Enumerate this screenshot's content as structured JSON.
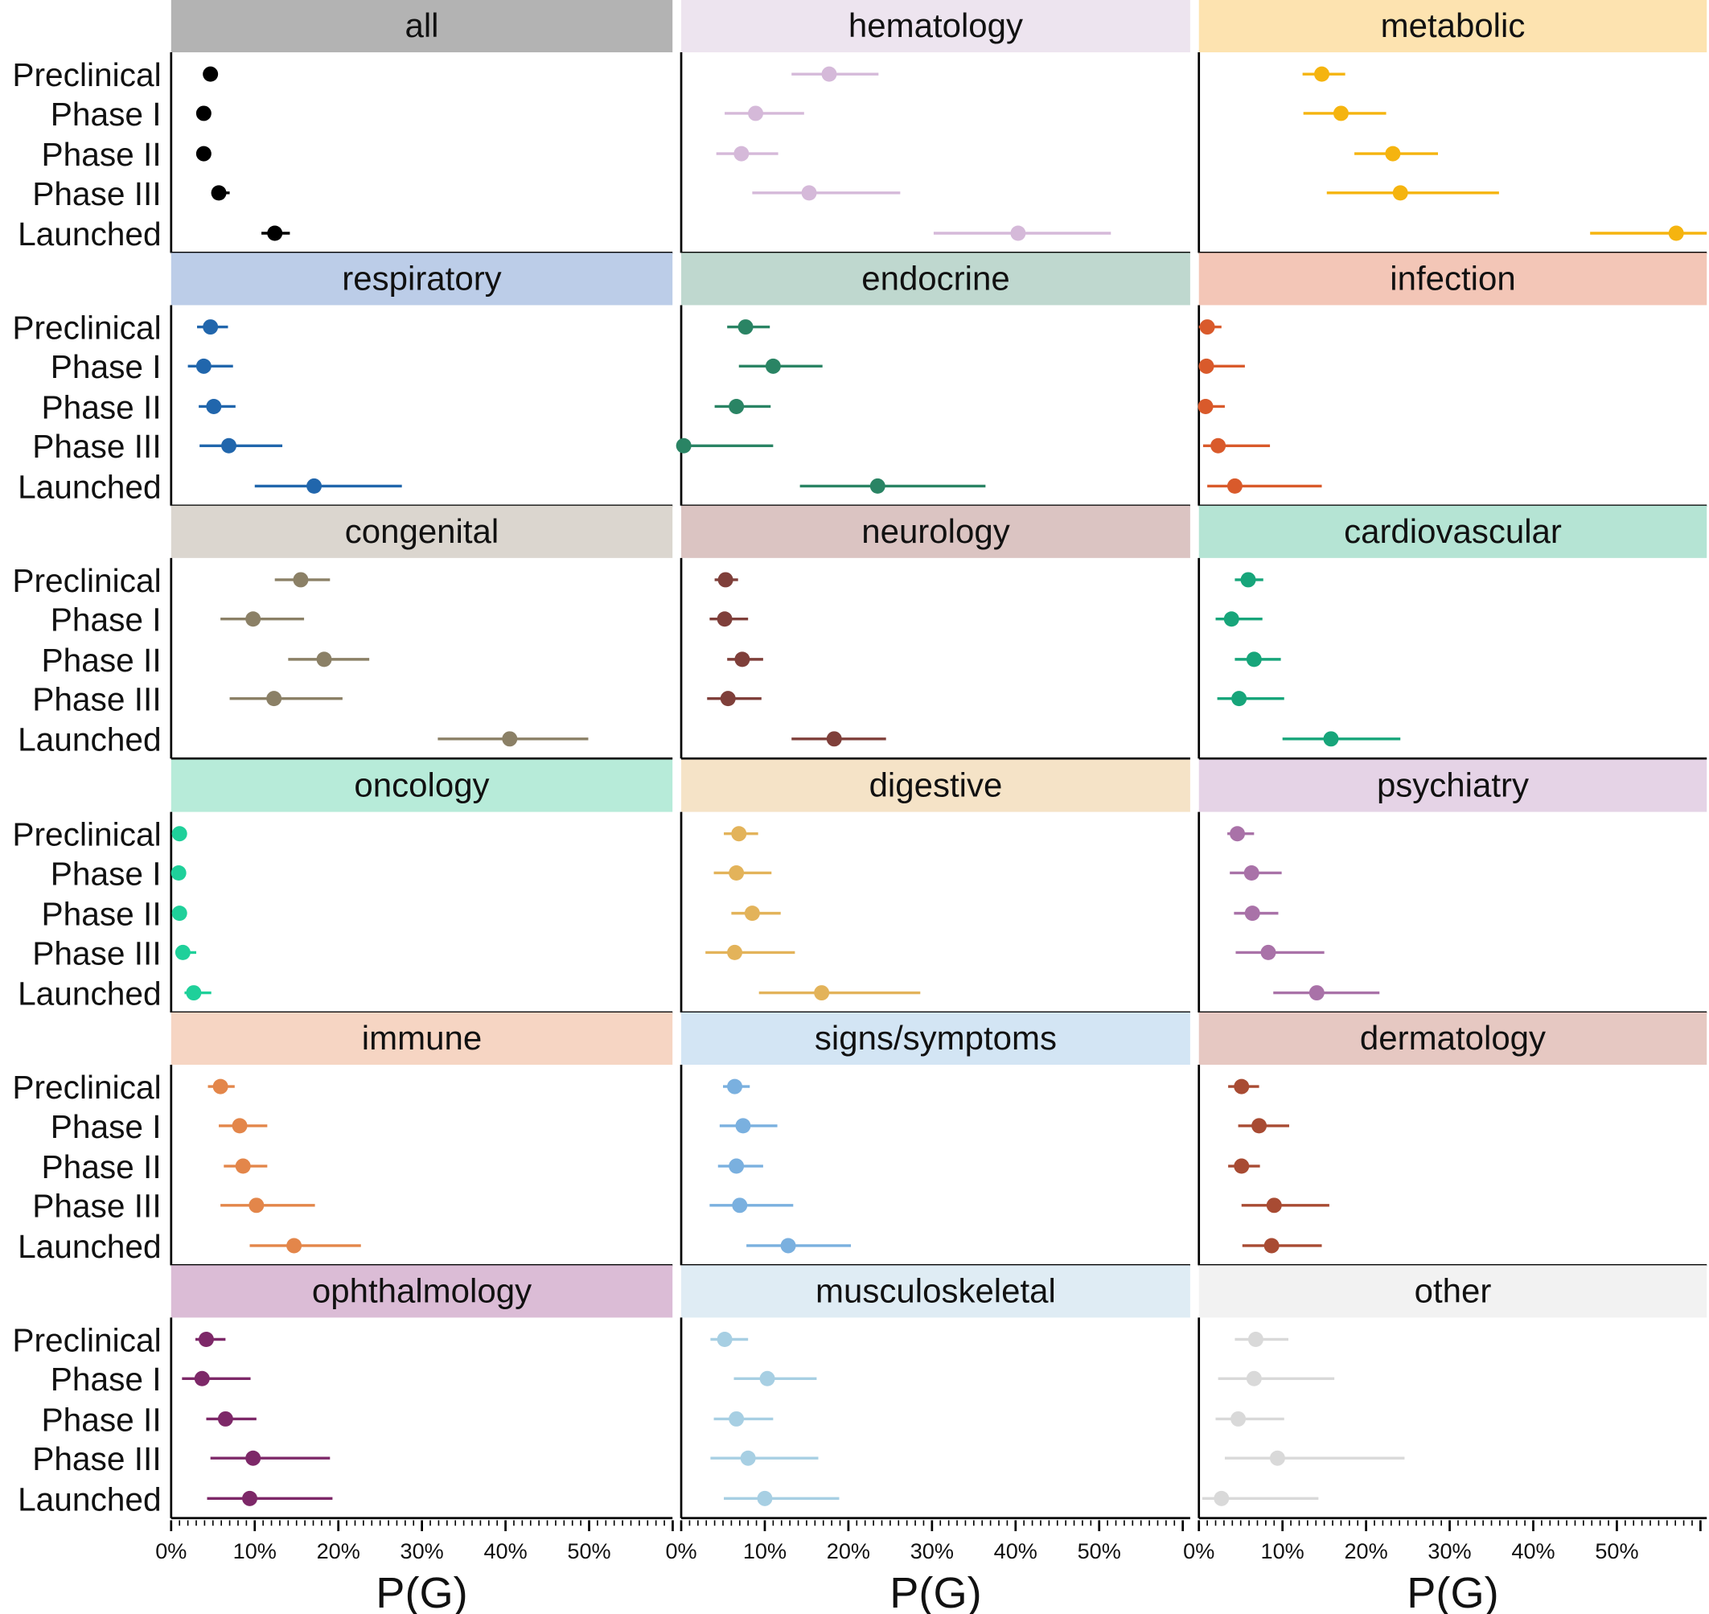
{
  "chart_data": {
    "type": "scatter",
    "subtype": "point-range faceted",
    "xlabel": "P(G)",
    "ylabel": "",
    "xlim": [
      0,
      60
    ],
    "x_ticks": [
      0,
      10,
      20,
      30,
      40,
      50
    ],
    "x_tick_labels": [
      "0%",
      "10%",
      "20%",
      "30%",
      "40%",
      "50%"
    ],
    "categories": [
      "Preclinical",
      "Phase I",
      "Phase II",
      "Phase III",
      "Launched"
    ],
    "grid": false,
    "legend": "none",
    "panels": [
      {
        "title": "all",
        "header_color": "#b3b3b3",
        "color": "#000000",
        "values": [
          4.7,
          3.9,
          3.9,
          5.7,
          12.4
        ],
        "lo": [
          4.7,
          3.9,
          3.9,
          4.9,
          10.8
        ],
        "hi": [
          4.7,
          3.9,
          3.9,
          7.0,
          14.2
        ]
      },
      {
        "title": "hematology",
        "header_color": "#ede4ef",
        "color": "#d5b9d9",
        "values": [
          17.7,
          8.9,
          7.2,
          15.3,
          40.3
        ],
        "lo": [
          13.2,
          5.2,
          4.2,
          8.5,
          30.2
        ],
        "hi": [
          23.6,
          14.7,
          11.6,
          26.2,
          51.4
        ]
      },
      {
        "title": "metabolic",
        "header_color": "#fde3b0",
        "color": "#f5b40f",
        "values": [
          14.7,
          17.0,
          23.2,
          24.1,
          57.1
        ],
        "lo": [
          12.4,
          12.5,
          18.6,
          15.3,
          46.8
        ],
        "hi": [
          17.5,
          22.4,
          28.6,
          35.9,
          60.8
        ]
      },
      {
        "title": "respiratory",
        "header_color": "#bccde8",
        "color": "#2166ac",
        "values": [
          4.7,
          3.9,
          5.1,
          6.9,
          17.1
        ],
        "lo": [
          3.1,
          2.0,
          3.3,
          3.4,
          10.0
        ],
        "hi": [
          6.8,
          7.4,
          7.7,
          13.3,
          27.6
        ]
      },
      {
        "title": "endocrine",
        "header_color": "#bfd8cf",
        "color": "#2a8464",
        "values": [
          7.7,
          11.0,
          6.6,
          0.3,
          23.5
        ],
        "lo": [
          5.5,
          6.9,
          4.0,
          0.0,
          14.2
        ],
        "hi": [
          10.6,
          16.9,
          10.7,
          11.0,
          36.4
        ]
      },
      {
        "title": "infection",
        "header_color": "#f3c6b7",
        "color": "#d95a2b",
        "values": [
          1.0,
          0.9,
          0.8,
          2.3,
          4.3
        ],
        "lo": [
          0.0,
          0.0,
          0.0,
          0.5,
          1.0
        ],
        "hi": [
          2.7,
          5.5,
          3.1,
          8.5,
          14.7
        ]
      },
      {
        "title": "congenital",
        "header_color": "#dbd6cf",
        "color": "#8b8066",
        "values": [
          15.5,
          9.8,
          18.3,
          12.3,
          40.5
        ],
        "lo": [
          12.4,
          5.9,
          14.0,
          7.0,
          31.9
        ],
        "hi": [
          19.0,
          15.9,
          23.7,
          20.5,
          49.9
        ]
      },
      {
        "title": "neurology",
        "header_color": "#dbc4c2",
        "color": "#7f3f3a",
        "values": [
          5.3,
          5.2,
          7.3,
          5.6,
          18.3
        ],
        "lo": [
          4.0,
          3.4,
          5.5,
          3.1,
          13.2
        ],
        "hi": [
          6.8,
          8.0,
          9.8,
          9.6,
          24.5
        ]
      },
      {
        "title": "cardiovascular",
        "header_color": "#b5e4d4",
        "color": "#17a57a",
        "values": [
          5.9,
          3.9,
          6.6,
          4.8,
          15.8
        ],
        "lo": [
          4.3,
          2.0,
          4.3,
          2.2,
          10.0
        ],
        "hi": [
          7.7,
          7.6,
          9.8,
          10.2,
          24.1
        ]
      },
      {
        "title": "oncology",
        "header_color": "#b7ebd9",
        "color": "#1fd09a",
        "values": [
          1.0,
          0.9,
          1.0,
          1.4,
          2.7
        ],
        "lo": [
          0.1,
          0.3,
          0.3,
          0.7,
          1.6
        ],
        "hi": [
          1.7,
          1.5,
          1.7,
          3.0,
          4.8
        ]
      },
      {
        "title": "digestive",
        "header_color": "#f5e3c7",
        "color": "#e3b35a",
        "values": [
          6.9,
          6.6,
          8.5,
          6.4,
          16.8
        ],
        "lo": [
          5.1,
          3.9,
          6.0,
          2.9,
          9.3
        ],
        "hi": [
          9.2,
          10.8,
          11.9,
          13.6,
          28.6
        ]
      },
      {
        "title": "psychiatry",
        "header_color": "#e5d3e6",
        "color": "#a972a8",
        "values": [
          4.6,
          6.3,
          6.4,
          8.3,
          14.1
        ],
        "lo": [
          3.4,
          3.7,
          4.2,
          4.4,
          8.9
        ],
        "hi": [
          6.6,
          9.9,
          9.5,
          15.0,
          21.6
        ]
      },
      {
        "title": "immune",
        "header_color": "#f6d5c3",
        "color": "#e3864a",
        "values": [
          5.9,
          8.2,
          8.6,
          10.2,
          14.7
        ],
        "lo": [
          4.4,
          5.7,
          6.3,
          5.9,
          9.4
        ],
        "hi": [
          7.6,
          11.5,
          11.5,
          17.2,
          22.7
        ]
      },
      {
        "title": "signs/symptoms",
        "header_color": "#d3e5f4",
        "color": "#7ab0df",
        "values": [
          6.4,
          7.4,
          6.6,
          7.0,
          12.8
        ],
        "lo": [
          5.0,
          4.6,
          4.4,
          3.4,
          7.8
        ],
        "hi": [
          8.2,
          11.5,
          9.8,
          13.4,
          20.3
        ]
      },
      {
        "title": "dermatology",
        "header_color": "#e6c8c2",
        "color": "#a84b33",
        "values": [
          5.1,
          7.2,
          5.1,
          9.0,
          8.7
        ],
        "lo": [
          3.5,
          4.7,
          3.5,
          5.1,
          5.2
        ],
        "hi": [
          7.2,
          10.8,
          7.3,
          15.6,
          14.7
        ]
      },
      {
        "title": "ophthalmology",
        "header_color": "#dbbcd6",
        "color": "#7d2868",
        "values": [
          4.2,
          3.7,
          6.5,
          9.8,
          9.4
        ],
        "lo": [
          2.9,
          1.3,
          4.2,
          4.7,
          4.3
        ],
        "hi": [
          6.5,
          9.5,
          10.2,
          19.0,
          19.3
        ]
      },
      {
        "title": "musculoskeletal",
        "header_color": "#dfecf4",
        "color": "#a7cfe3",
        "values": [
          5.2,
          10.3,
          6.6,
          8.0,
          10.0
        ],
        "lo": [
          3.5,
          6.3,
          3.9,
          3.5,
          5.1
        ],
        "hi": [
          8.0,
          16.2,
          11.0,
          16.4,
          18.9
        ]
      },
      {
        "title": "other",
        "header_color": "#f2f2f2",
        "color": "#d9d9d9",
        "values": [
          6.8,
          6.6,
          4.7,
          9.4,
          2.7
        ],
        "lo": [
          4.3,
          2.3,
          2.0,
          3.1,
          0.4
        ],
        "hi": [
          10.7,
          16.2,
          10.2,
          24.6,
          14.3
        ]
      }
    ]
  }
}
